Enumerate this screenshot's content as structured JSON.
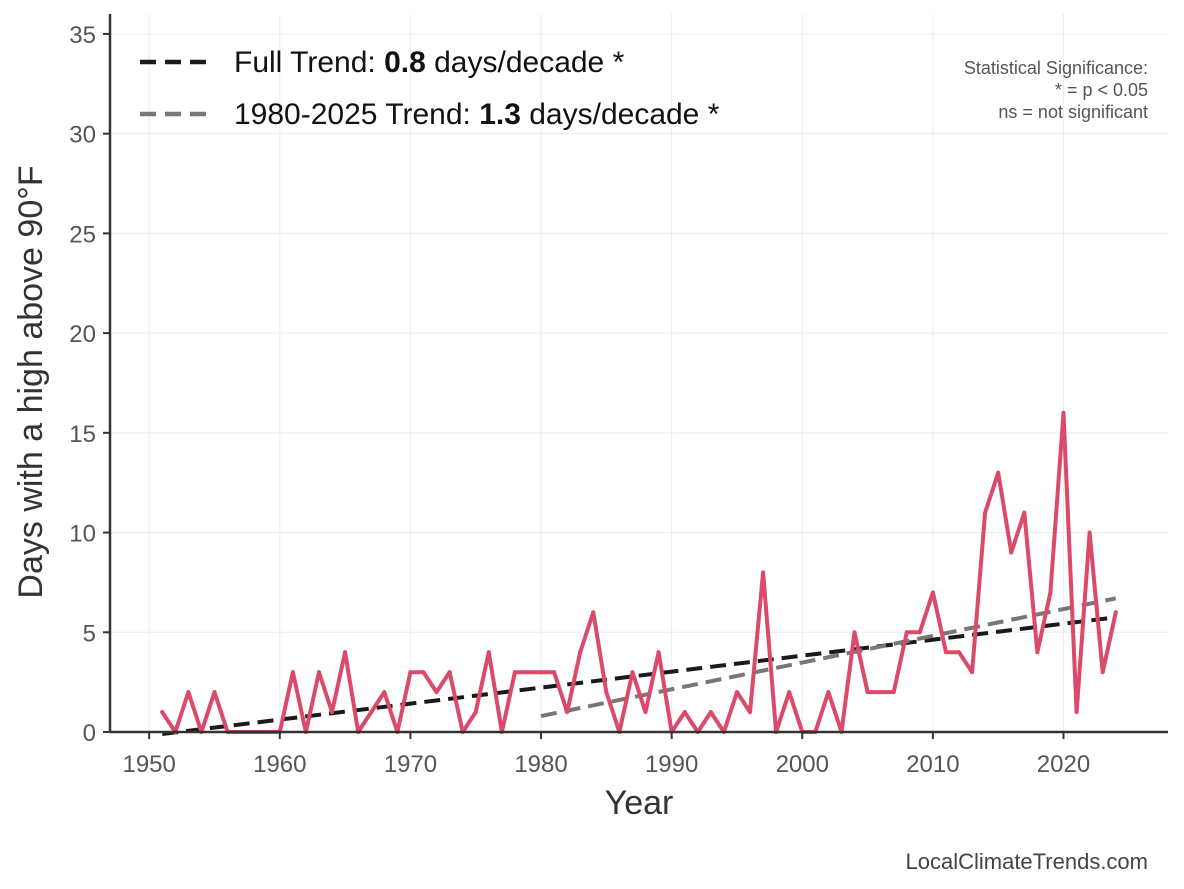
{
  "chart_data": {
    "type": "line",
    "xlabel": "Year",
    "ylabel": "Days with a high above 90°F",
    "xlim": [
      1947,
      2028
    ],
    "ylim": [
      0,
      36
    ],
    "xticks": [
      1950,
      1960,
      1970,
      1980,
      1990,
      2000,
      2010,
      2020
    ],
    "yticks": [
      0,
      5,
      10,
      15,
      20,
      25,
      30,
      35
    ],
    "grid": true,
    "legend_placement": "top-left",
    "series": [
      {
        "color": "#dc4a6a",
        "x": [
          1951,
          1952,
          1953,
          1954,
          1955,
          1956,
          1957,
          1958,
          1959,
          1960,
          1961,
          1962,
          1963,
          1964,
          1965,
          1966,
          1967,
          1968,
          1969,
          1970,
          1971,
          1972,
          1973,
          1974,
          1975,
          1976,
          1977,
          1978,
          1979,
          1980,
          1981,
          1982,
          1983,
          1984,
          1985,
          1986,
          1987,
          1988,
          1989,
          1990,
          1991,
          1992,
          1993,
          1994,
          1995,
          1996,
          1997,
          1998,
          1999,
          2000,
          2001,
          2002,
          2003,
          2004,
          2005,
          2006,
          2007,
          2008,
          2009,
          2010,
          2011,
          2012,
          2013,
          2014,
          2015,
          2016,
          2017,
          2018,
          2019,
          2020,
          2021,
          2022,
          2023,
          2024
        ],
        "values": [
          1,
          0,
          2,
          0,
          2,
          0,
          0,
          0,
          0,
          0,
          3,
          0,
          3,
          1,
          4,
          0,
          1,
          2,
          0,
          3,
          3,
          2,
          3,
          0,
          1,
          4,
          0,
          3,
          3,
          3,
          3,
          1,
          4,
          6,
          2,
          0,
          3,
          1,
          4,
          0,
          1,
          0,
          1,
          0,
          2,
          1,
          8,
          0,
          2,
          0,
          0,
          2,
          0,
          5,
          2,
          2,
          2,
          5,
          5,
          7,
          4,
          4,
          3,
          11,
          13,
          9,
          11,
          4,
          7,
          16,
          1,
          10,
          3,
          6
        ]
      }
    ],
    "trends": [
      {
        "label": "Full Trend: ",
        "value": "0.8",
        "unit": " days/decade *",
        "color": "#1a1a1a",
        "x": [
          1951,
          2024
        ],
        "y": [
          -0.1,
          5.75
        ]
      },
      {
        "label": "1980-2025 Trend: ",
        "value": "1.3",
        "unit": " days/decade *",
        "color": "#777777",
        "x": [
          1980,
          2024
        ],
        "y": [
          0.8,
          6.7
        ]
      }
    ],
    "significance": {
      "title": "Statistical Significance:",
      "line1": "* = p < 0.05",
      "line2": "ns = not significant"
    },
    "footer": "LocalClimateTrends.com"
  }
}
